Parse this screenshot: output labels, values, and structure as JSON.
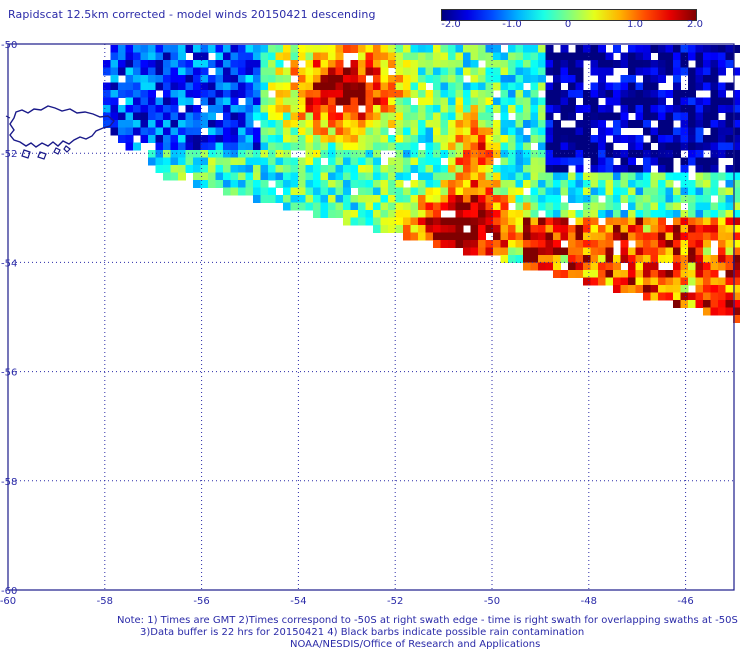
{
  "title": "Rapidscat 12.5km corrected - model winds 20150421 descending",
  "colorbar": {
    "ticks": [
      "-2.0",
      "-1.0",
      "0",
      "1.0",
      "2.0"
    ],
    "min": -2.0,
    "max": 2.0
  },
  "map": {
    "lon_labels": [
      "-60",
      "-58",
      "-56",
      "-54",
      "-52",
      "-50",
      "-48",
      "-46"
    ],
    "lat_labels": [
      "-50",
      "-52",
      "-54",
      "-56",
      "-58",
      "-60"
    ],
    "lon_range": [
      -60,
      -45
    ],
    "lat_range": [
      -60,
      -50
    ],
    "grid": true,
    "colors": {
      "frame": "#1a1a8a",
      "gridline": "#2a2aa8",
      "coastline": "#1a1a8a"
    }
  },
  "notes": {
    "line1": "Note: 1) Times are GMT 2)Times correspond to -50S at right swath edge - time is right swath for overlapping swaths at -50S",
    "line2": "3)Data buffer is 22 hrs for 20150421 4) Black barbs indicate possible rain contamination",
    "line3": "NOAA/NESDIS/Office of Research and Applications"
  }
}
